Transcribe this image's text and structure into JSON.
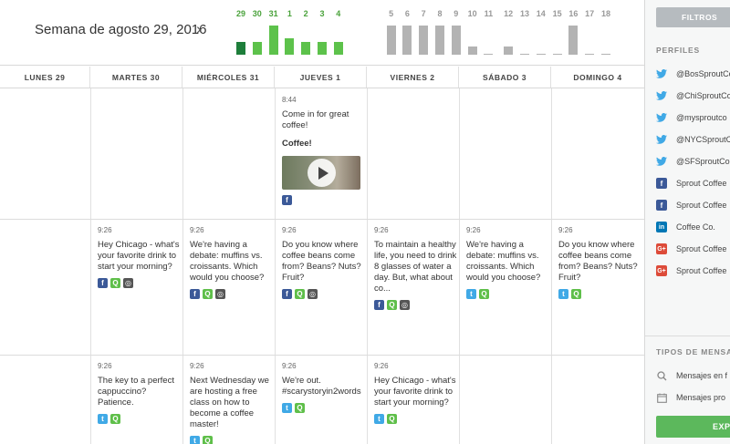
{
  "header": {
    "week_title": "Semana de agosto 29, 2016",
    "next_arrow": "›"
  },
  "histogram": {
    "bars": [
      {
        "label": "29",
        "value": 3,
        "color": "#1e7e3b",
        "green": true
      },
      {
        "label": "30",
        "value": 3,
        "color": "#5dc24b",
        "green": true
      },
      {
        "label": "31",
        "value": 7,
        "color": "#5dc24b",
        "green": true
      },
      {
        "label": "1",
        "value": 4,
        "color": "#5dc24b",
        "green": true
      },
      {
        "label": "2",
        "value": 3,
        "color": "#5dc24b",
        "green": true
      },
      {
        "label": "3",
        "value": 3,
        "color": "#5dc24b",
        "green": true
      },
      {
        "label": "4",
        "value": 3,
        "color": "#5dc24b",
        "green": true
      },
      {
        "label": "5",
        "value": 7,
        "color": "#b3b3b3",
        "green": false
      },
      {
        "label": "6",
        "value": 7,
        "color": "#b3b3b3",
        "green": false
      },
      {
        "label": "7",
        "value": 7,
        "color": "#b3b3b3",
        "green": false
      },
      {
        "label": "8",
        "value": 7,
        "color": "#b3b3b3",
        "green": false
      },
      {
        "label": "9",
        "value": 7,
        "color": "#b3b3b3",
        "green": false
      },
      {
        "label": "10",
        "value": 2,
        "color": "#b3b3b3",
        "green": false
      },
      {
        "label": "11",
        "value": 0,
        "color": "#b3b3b3",
        "green": false
      },
      {
        "label": "12",
        "value": 2,
        "color": "#b3b3b3",
        "green": false
      },
      {
        "label": "13",
        "value": 0,
        "color": "#b3b3b3",
        "green": false
      },
      {
        "label": "14",
        "value": 0,
        "color": "#b3b3b3",
        "green": false
      },
      {
        "label": "15",
        "value": 0,
        "color": "#b3b3b3",
        "green": false
      },
      {
        "label": "16",
        "value": 7,
        "color": "#b3b3b3",
        "green": false
      },
      {
        "label": "17",
        "value": 0,
        "color": "#b3b3b3",
        "green": false
      },
      {
        "label": "18",
        "value": 0,
        "color": "#b3b3b3",
        "green": false
      }
    ],
    "max_value": 7
  },
  "days": [
    "LUNES 29",
    "MARTES 30",
    "MIÉRCOLES 31",
    "JUEVES 1",
    "VIERNES 2",
    "SÁBADO 3",
    "DOMINGO 4"
  ],
  "posts": {
    "thu_844": {
      "time": "8:44",
      "text": "Come in for great coffee!",
      "subtitle": "Coffee!"
    },
    "tue_926a": {
      "time": "9:26",
      "text": "Hey Chicago - what's your favorite drink to start your morning?"
    },
    "wed_926a": {
      "time": "9:26",
      "text": "We're having a debate: muffins vs. croissants. Which would you choose?"
    },
    "thu_926a": {
      "time": "9:26",
      "text": "Do you know where coffee beans come from? Beans? Nuts? Fruit?"
    },
    "fri_926a": {
      "time": "9:26",
      "text": "To maintain a healthy life, you need to drink 8 glasses of water a day. But, what about co..."
    },
    "sat_926a": {
      "time": "9:26",
      "text": "We're having a debate: muffins vs. croissants. Which would you choose?"
    },
    "sun_926a": {
      "time": "9:26",
      "text": "Do you know where coffee beans come from? Beans? Nuts? Fruit?"
    },
    "tue_926b": {
      "time": "9:26",
      "text": "The key to a perfect cappuccino? Patience."
    },
    "wed_926b": {
      "time": "9:26",
      "text": "Next Wednesday we are hosting a free class on how to become a coffee master!"
    },
    "thu_926b": {
      "time": "9:26",
      "text": "We're out. #scarystoryin2words"
    },
    "fri_926b": {
      "time": "9:26",
      "text": "Hey Chicago - what's your favorite drink to start your morning?"
    }
  },
  "icons": {
    "facebook": "f",
    "twitter": "t",
    "sprout": "Q",
    "target": "◎"
  },
  "sidebar": {
    "filter_button": "FILTROS",
    "profiles_title": "PERFILES",
    "profiles": [
      {
        "network": "twitter",
        "name": "@BosSproutCo"
      },
      {
        "network": "twitter",
        "name": "@ChiSproutCo"
      },
      {
        "network": "twitter",
        "name": "@mysproutco"
      },
      {
        "network": "twitter",
        "name": "@NYCSproutCo"
      },
      {
        "network": "twitter",
        "name": "@SFSproutCo"
      },
      {
        "network": "facebook",
        "name": "Sprout Coffee"
      },
      {
        "network": "facebook",
        "name": "Sprout Coffee"
      },
      {
        "network": "linkedin",
        "name": "Coffee Co."
      },
      {
        "network": "google",
        "name": "Sprout Coffee"
      },
      {
        "network": "google",
        "name": "Sprout Coffee"
      }
    ],
    "message_types_title": "TIPOS DE MENSAJES",
    "message_types": [
      {
        "icon": "search-icon",
        "label": "Mensajes en f"
      },
      {
        "icon": "calendar-icon",
        "label": "Mensajes pro"
      }
    ],
    "export_button": "EXP"
  }
}
